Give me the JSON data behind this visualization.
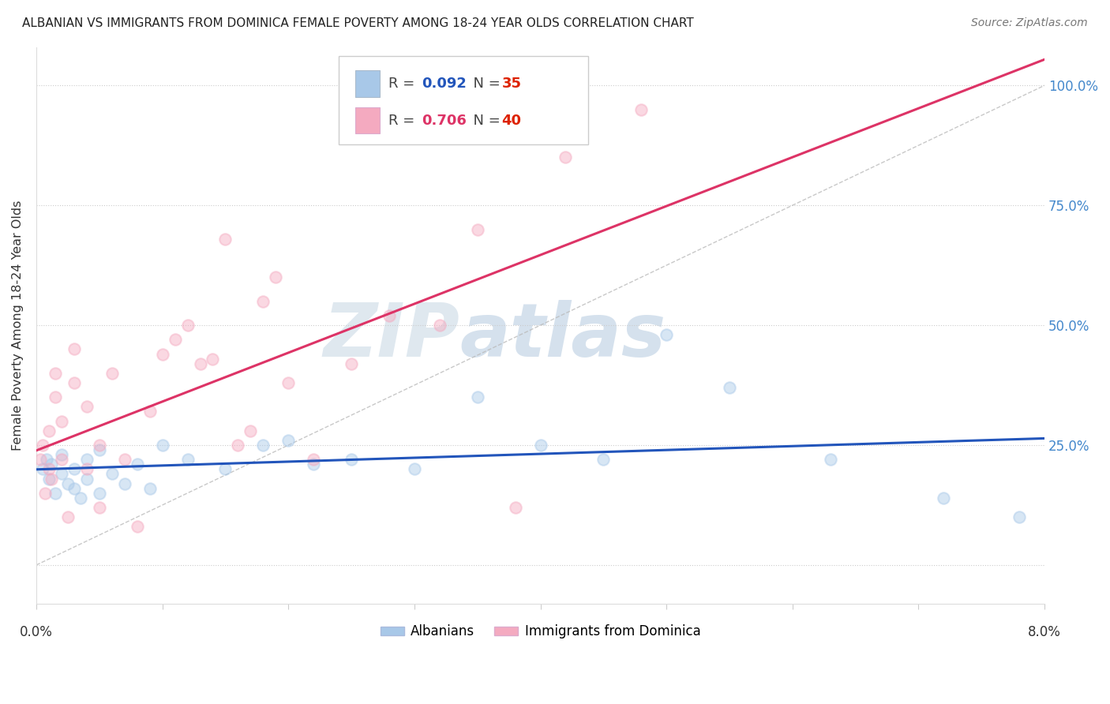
{
  "title": "ALBANIAN VS IMMIGRANTS FROM DOMINICA FEMALE POVERTY AMONG 18-24 YEAR OLDS CORRELATION CHART",
  "source": "Source: ZipAtlas.com",
  "ylabel": "Female Poverty Among 18-24 Year Olds",
  "yticks": [
    0.0,
    0.25,
    0.5,
    0.75,
    1.0
  ],
  "ytick_labels": [
    "",
    "25.0%",
    "50.0%",
    "75.0%",
    "100.0%"
  ],
  "xlim": [
    0.0,
    0.08
  ],
  "ylim": [
    -0.08,
    1.08
  ],
  "albanians_color": "#a8c8e8",
  "dominica_color": "#f4aac0",
  "albanians_line_color": "#2255bb",
  "dominica_line_color": "#dd3366",
  "R_albanians": 0.092,
  "N_albanians": 35,
  "R_dominica": 0.706,
  "N_dominica": 40,
  "legend_albanians": "Albanians",
  "legend_dominica": "Immigrants from Dominica",
  "albanians_x": [
    0.0005,
    0.0008,
    0.001,
    0.0012,
    0.0015,
    0.002,
    0.002,
    0.0025,
    0.003,
    0.003,
    0.0035,
    0.004,
    0.004,
    0.005,
    0.005,
    0.006,
    0.007,
    0.008,
    0.009,
    0.01,
    0.012,
    0.015,
    0.018,
    0.02,
    0.022,
    0.025,
    0.03,
    0.035,
    0.04,
    0.045,
    0.05,
    0.055,
    0.063,
    0.072,
    0.078
  ],
  "albanians_y": [
    0.2,
    0.22,
    0.18,
    0.21,
    0.15,
    0.19,
    0.23,
    0.17,
    0.16,
    0.2,
    0.14,
    0.22,
    0.18,
    0.24,
    0.15,
    0.19,
    0.17,
    0.21,
    0.16,
    0.25,
    0.22,
    0.2,
    0.25,
    0.26,
    0.21,
    0.22,
    0.2,
    0.35,
    0.25,
    0.22,
    0.48,
    0.37,
    0.22,
    0.14,
    0.1
  ],
  "dominica_x": [
    0.0003,
    0.0005,
    0.0007,
    0.001,
    0.001,
    0.0012,
    0.0015,
    0.0015,
    0.002,
    0.002,
    0.0025,
    0.003,
    0.003,
    0.004,
    0.004,
    0.005,
    0.005,
    0.006,
    0.007,
    0.008,
    0.009,
    0.01,
    0.011,
    0.012,
    0.013,
    0.014,
    0.015,
    0.016,
    0.017,
    0.018,
    0.019,
    0.02,
    0.022,
    0.025,
    0.028,
    0.032,
    0.035,
    0.038,
    0.042,
    0.048
  ],
  "dominica_y": [
    0.22,
    0.25,
    0.15,
    0.2,
    0.28,
    0.18,
    0.35,
    0.4,
    0.3,
    0.22,
    0.1,
    0.38,
    0.45,
    0.33,
    0.2,
    0.12,
    0.25,
    0.4,
    0.22,
    0.08,
    0.32,
    0.44,
    0.47,
    0.5,
    0.42,
    0.43,
    0.68,
    0.25,
    0.28,
    0.55,
    0.6,
    0.38,
    0.22,
    0.42,
    0.52,
    0.5,
    0.7,
    0.12,
    0.85,
    0.95
  ],
  "watermark_zip": "ZIP",
  "watermark_atlas": "atlas",
  "marker_size": 110,
  "marker_alpha": 0.45,
  "edgecolor_alpha": 0.7
}
